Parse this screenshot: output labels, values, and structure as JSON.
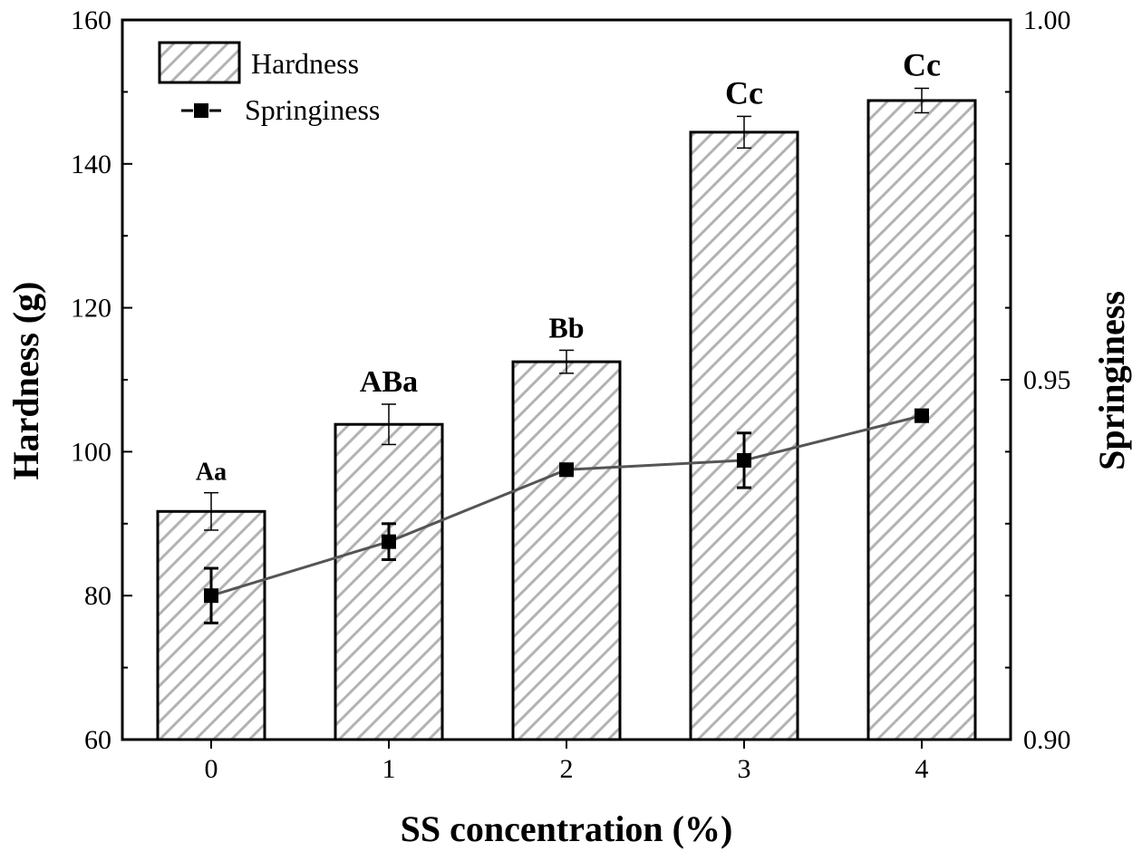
{
  "chart_data": {
    "type": "bar",
    "categories": [
      "0",
      "1",
      "2",
      "3",
      "4"
    ],
    "xlabel": "SS concentration (%)",
    "ylabel": "Hardness (g)",
    "y2label": "Springiness",
    "ylim": [
      60,
      160
    ],
    "yticks": [
      "60",
      "80",
      "100",
      "120",
      "140",
      "160"
    ],
    "y2lim": [
      0.9,
      1.0
    ],
    "y2ticks": [
      "0.90",
      "0.95",
      "1.00"
    ],
    "grid": false,
    "legend_position": "top-left",
    "series": [
      {
        "name": "Hardness",
        "kind": "bar",
        "axis": "left",
        "fill_pattern": "diagonal-hatch",
        "values": [
          91.7,
          103.8,
          112.5,
          144.4,
          148.8
        ],
        "errors": [
          2.6,
          2.8,
          1.6,
          2.2,
          1.7
        ],
        "labels": [
          "Aa",
          "ABa",
          "Bb",
          "Cc",
          "Cc"
        ]
      },
      {
        "name": "Springiness",
        "kind": "line",
        "axis": "right",
        "marker": "square",
        "values": [
          0.92,
          0.9275,
          0.9375,
          0.9388,
          0.945
        ],
        "errors": [
          0.0038,
          0.0025,
          0.0008,
          0.0038,
          0.0008
        ]
      }
    ],
    "colors": {
      "bar_fill": "#ffffff",
      "bar_hatch": "#b3b3b3",
      "bar_edge": "#000000",
      "line": "#555555",
      "marker": "#000000"
    }
  }
}
